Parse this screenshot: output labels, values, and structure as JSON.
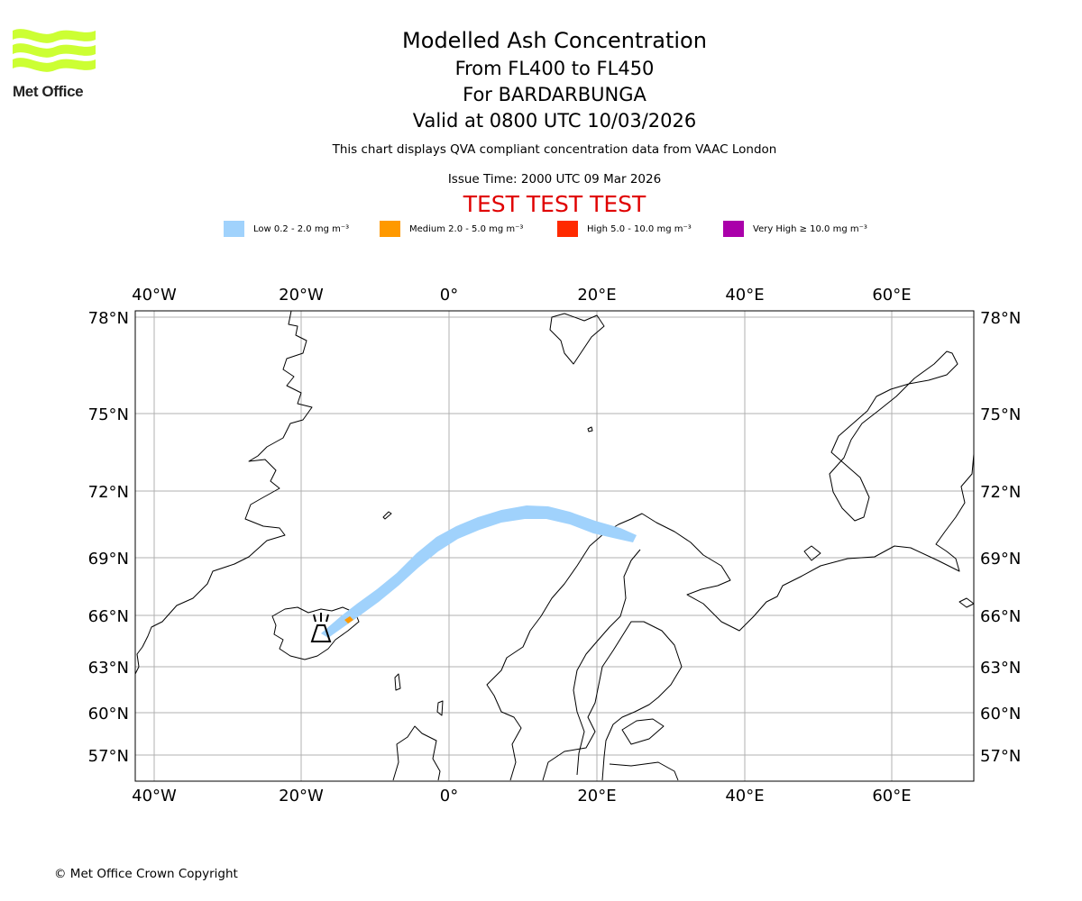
{
  "logo": {
    "text": "Met Office"
  },
  "header": {
    "title": "Modelled Ash Concentration",
    "flight_levels": "From FL400 to FL450",
    "volcano": "For BARDARBUNGA",
    "valid_time": "Valid at 0800 UTC 10/03/2026",
    "compliance_note": "This chart displays QVA compliant concentration data from VAAC London",
    "issue_time": "Issue Time: 2000 UTC 09 Mar 2026",
    "test_banner": "TEST TEST TEST"
  },
  "legend": [
    {
      "label": "Low 0.2 - 2.0 mg m⁻³",
      "color": "#a0d2fc"
    },
    {
      "label": "Medium 2.0 - 5.0 mg m⁻³",
      "color": "#ff9900"
    },
    {
      "label": "High 5.0 - 10.0 mg m⁻³",
      "color": "#ff2a00"
    },
    {
      "label": "Very High ≥ 10.0 mg m⁻³",
      "color": "#aa00aa"
    }
  ],
  "map": {
    "lon_ticks": [
      "40°W",
      "20°W",
      "0°",
      "20°E",
      "40°E",
      "60°E"
    ],
    "lat_ticks": [
      "78°N",
      "75°N",
      "72°N",
      "69°N",
      "66°N",
      "63°N",
      "60°N",
      "57°N"
    ],
    "volcano_marker": "volcano-icon"
  },
  "colors": {
    "grid": "#b0b0b0",
    "coast": "#000000",
    "test_banner": "#e00000",
    "logo_green": "#ccff33"
  },
  "footer": {
    "copyright": "© Met Office Crown Copyright"
  }
}
